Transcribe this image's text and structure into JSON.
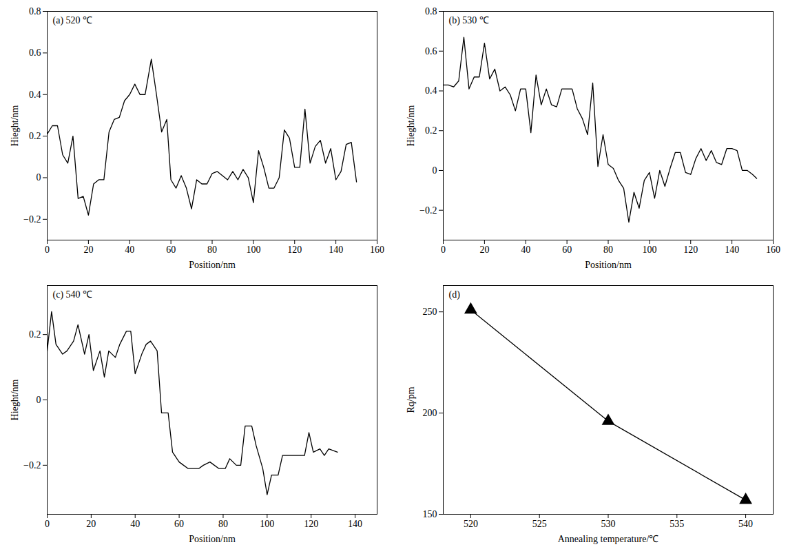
{
  "chart_data": [
    {
      "type": "line",
      "title": "(a) 520 ℃",
      "x_label": "Position/nm",
      "y_label": "Hieght/nm",
      "color": "#000000",
      "x": [
        0,
        2.5,
        5,
        7.5,
        10,
        12.5,
        15,
        17.5,
        20,
        22.5,
        25,
        27.5,
        30,
        32.5,
        35,
        37.5,
        40,
        42.5,
        45,
        47.5,
        50.5,
        53,
        55.5,
        58,
        60,
        62.5,
        65,
        67.5,
        70,
        72.5,
        75,
        77.5,
        80,
        82.5,
        85,
        87.5,
        90,
        92.5,
        95,
        97.5,
        100,
        102.5,
        105,
        107.5,
        110,
        112.5,
        115,
        117.5,
        120,
        122.5,
        125,
        127.5,
        130,
        132.5,
        135,
        137.5,
        140,
        142.5,
        145,
        147.5,
        150
      ],
      "values": [
        0.21,
        0.25,
        0.25,
        0.11,
        0.07,
        0.2,
        -0.1,
        -0.09,
        -0.18,
        -0.03,
        -0.01,
        -0.01,
        0.22,
        0.28,
        0.29,
        0.37,
        0.4,
        0.45,
        0.4,
        0.4,
        0.57,
        0.4,
        0.22,
        0.28,
        -0.01,
        -0.05,
        0.01,
        -0.05,
        -0.15,
        -0.01,
        -0.03,
        -0.03,
        0.02,
        0.03,
        0.01,
        -0.01,
        0.03,
        -0.01,
        0.04,
        0.0,
        -0.12,
        0.13,
        0.05,
        -0.05,
        -0.05,
        0.0,
        0.23,
        0.19,
        0.05,
        0.05,
        0.33,
        0.07,
        0.15,
        0.18,
        0.07,
        0.14,
        -0.01,
        0.03,
        0.16,
        0.17,
        -0.02
      ],
      "xlim": [
        0,
        160
      ],
      "xticks": [
        0,
        20,
        40,
        60,
        80,
        100,
        120,
        140,
        160
      ],
      "ylim": [
        -0.3,
        0.8
      ],
      "yticks": [
        {
          "value": -0.2,
          "label": "−0.2"
        },
        0,
        0.2,
        0.4,
        0.6,
        0.8
      ]
    },
    {
      "type": "line",
      "title": "(b) 530 ℃",
      "x_label": "Position/nm",
      "y_label": "Hieght/nm",
      "color": "#000000",
      "x": [
        0,
        2.5,
        5,
        7.5,
        10,
        12.5,
        15,
        17.5,
        20,
        22.5,
        25,
        27.5,
        30,
        32.5,
        35,
        37.5,
        40,
        42.5,
        45,
        47.5,
        50,
        52.5,
        55,
        57.5,
        60,
        62.5,
        65,
        67.5,
        70,
        72.5,
        75,
        77.5,
        80,
        82.5,
        85,
        87.5,
        90,
        92.5,
        95,
        97.5,
        100,
        102.5,
        105,
        107.5,
        110,
        112.5,
        115,
        117.5,
        120,
        122.5,
        125,
        127.5,
        130,
        132.5,
        135,
        137.5,
        140,
        142.5,
        145,
        147.5,
        150,
        152
      ],
      "values": [
        0.43,
        0.43,
        0.42,
        0.45,
        0.67,
        0.41,
        0.47,
        0.47,
        0.64,
        0.46,
        0.51,
        0.4,
        0.42,
        0.38,
        0.3,
        0.41,
        0.41,
        0.19,
        0.48,
        0.33,
        0.41,
        0.33,
        0.32,
        0.41,
        0.41,
        0.41,
        0.31,
        0.26,
        0.18,
        0.44,
        0.02,
        0.18,
        0.03,
        0.01,
        -0.05,
        -0.09,
        -0.26,
        -0.11,
        -0.19,
        -0.05,
        -0.01,
        -0.14,
        0.0,
        -0.08,
        0.01,
        0.09,
        0.09,
        -0.01,
        -0.02,
        0.06,
        0.11,
        0.05,
        0.1,
        0.04,
        0.03,
        0.11,
        0.11,
        0.1,
        0.0,
        0.0,
        -0.02,
        -0.04
      ],
      "xlim": [
        0,
        160
      ],
      "xticks": [
        0,
        20,
        40,
        60,
        80,
        100,
        120,
        140,
        160
      ],
      "ylim": [
        -0.35,
        0.8
      ],
      "yticks": [
        {
          "value": -0.2,
          "label": "−0.2"
        },
        0,
        0.2,
        0.4,
        0.6,
        0.8
      ]
    },
    {
      "type": "line",
      "title": "(c) 540 ℃",
      "x_label": "Position/nm",
      "y_label": "Hieght/nm",
      "color": "#000000",
      "x": [
        0,
        2,
        4,
        7,
        9,
        12,
        14,
        17,
        19,
        21,
        24,
        26,
        28,
        31,
        33,
        36,
        38,
        40,
        43,
        45,
        47,
        50,
        52,
        55,
        57,
        60,
        62,
        64,
        67,
        69,
        71,
        74,
        76,
        78,
        81,
        83,
        86,
        88,
        90,
        93,
        95,
        98,
        100,
        102,
        105,
        107,
        110,
        112,
        114,
        117,
        119,
        121,
        124,
        126,
        128,
        132
      ],
      "values": [
        0.15,
        0.27,
        0.17,
        0.14,
        0.15,
        0.18,
        0.23,
        0.14,
        0.2,
        0.09,
        0.15,
        0.07,
        0.15,
        0.13,
        0.17,
        0.21,
        0.21,
        0.08,
        0.14,
        0.17,
        0.18,
        0.15,
        -0.04,
        -0.04,
        -0.16,
        -0.19,
        -0.2,
        -0.21,
        -0.21,
        -0.21,
        -0.2,
        -0.19,
        -0.2,
        -0.21,
        -0.21,
        -0.18,
        -0.2,
        -0.2,
        -0.08,
        -0.08,
        -0.14,
        -0.21,
        -0.29,
        -0.23,
        -0.23,
        -0.17,
        -0.17,
        -0.17,
        -0.17,
        -0.17,
        -0.1,
        -0.16,
        -0.15,
        -0.17,
        -0.15,
        -0.16
      ],
      "xlim": [
        0,
        150
      ],
      "xticks": [
        0,
        20,
        40,
        60,
        80,
        100,
        120,
        140
      ],
      "ylim": [
        -0.35,
        0.35
      ],
      "yticks": [
        {
          "value": -0.2,
          "label": "−0.2"
        },
        0,
        0.2
      ]
    },
    {
      "type": "line",
      "title": "(d)",
      "x_label": "Annealing temperature/℃",
      "y_label": "Rq/pm",
      "color": "#000000",
      "marker": "triangle",
      "x": [
        520,
        530,
        540
      ],
      "values": [
        251,
        196,
        157
      ],
      "xlim": [
        518,
        542
      ],
      "xticks": [
        520,
        525,
        530,
        535,
        540
      ],
      "ylim": [
        150,
        263
      ],
      "yticks": [
        150,
        200,
        250
      ]
    }
  ]
}
